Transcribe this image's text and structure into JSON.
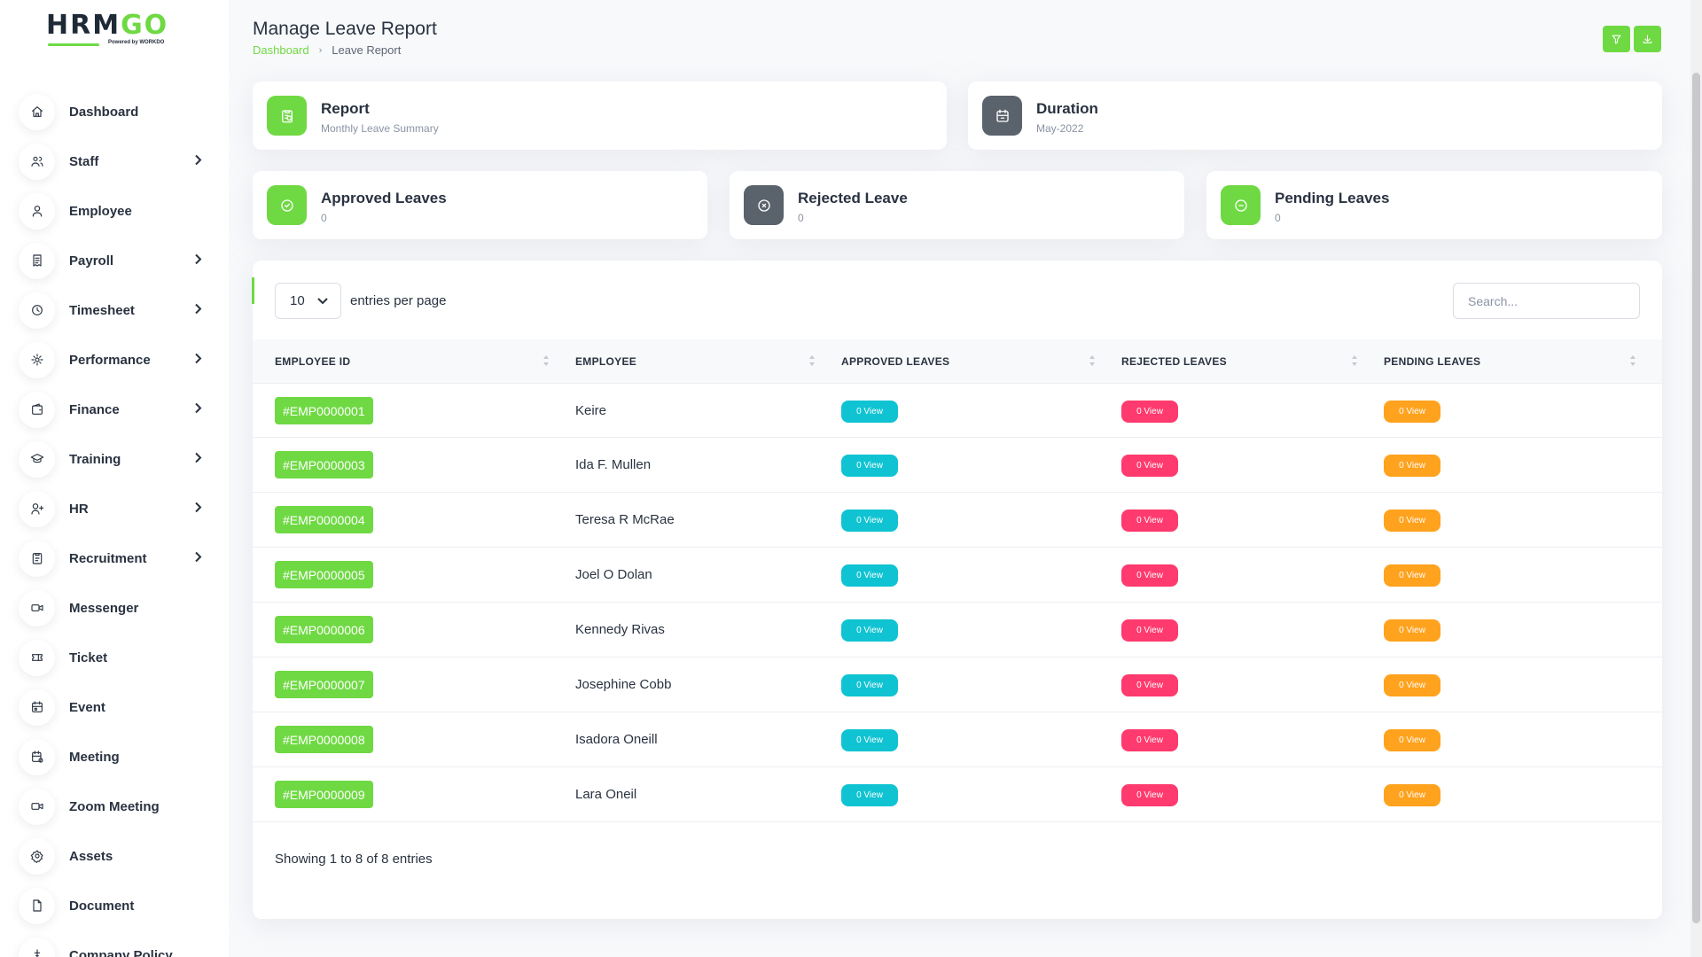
{
  "brand": {
    "logo_main": "HRM",
    "logo_go": "GO",
    "powered": "Powered by WORKDO"
  },
  "sidebar": {
    "items": [
      {
        "label": "Dashboard",
        "icon": "home-icon",
        "has_children": false
      },
      {
        "label": "Staff",
        "icon": "users-icon",
        "has_children": true
      },
      {
        "label": "Employee",
        "icon": "user-icon",
        "has_children": false
      },
      {
        "label": "Payroll",
        "icon": "receipt-icon",
        "has_children": true
      },
      {
        "label": "Timesheet",
        "icon": "clock-icon",
        "has_children": true
      },
      {
        "label": "Performance",
        "icon": "performance-icon",
        "has_children": true
      },
      {
        "label": "Finance",
        "icon": "wallet-icon",
        "has_children": true
      },
      {
        "label": "Training",
        "icon": "school-icon",
        "has_children": true
      },
      {
        "label": "HR",
        "icon": "user-plus-icon",
        "has_children": true
      },
      {
        "label": "Recruitment",
        "icon": "clipboard-icon",
        "has_children": true
      },
      {
        "label": "Messenger",
        "icon": "video-icon",
        "has_children": false
      },
      {
        "label": "Ticket",
        "icon": "ticket-icon",
        "has_children": false
      },
      {
        "label": "Event",
        "icon": "calendar-event-icon",
        "has_children": false
      },
      {
        "label": "Meeting",
        "icon": "calendar-time-icon",
        "has_children": false
      },
      {
        "label": "Zoom Meeting",
        "icon": "video-icon",
        "has_children": false
      },
      {
        "label": "Assets",
        "icon": "gear-icon",
        "has_children": false
      },
      {
        "label": "Document",
        "icon": "file-icon",
        "has_children": false
      },
      {
        "label": "Company Policy",
        "icon": "policy-icon",
        "has_children": false
      }
    ]
  },
  "header": {
    "title": "Manage Leave Report",
    "breadcrumb": {
      "home": "Dashboard",
      "current": "Leave Report"
    }
  },
  "summary": {
    "report": {
      "title": "Report",
      "value": "Monthly Leave Summary"
    },
    "duration": {
      "title": "Duration",
      "value": "May-2022"
    },
    "approved": {
      "title": "Approved Leaves",
      "value": "0"
    },
    "rejected": {
      "title": "Rejected Leave",
      "value": "0"
    },
    "pending": {
      "title": "Pending Leaves",
      "value": "0"
    }
  },
  "table": {
    "per_page": "10",
    "per_page_label": "entries per page",
    "search_placeholder": "Search...",
    "columns": [
      "EMPLOYEE ID",
      "EMPLOYEE",
      "APPROVED LEAVES",
      "REJECTED LEAVES",
      "PENDING LEAVES"
    ],
    "rows": [
      {
        "id": "#EMP0000001",
        "name": "Keire",
        "approved": "0 View",
        "rejected": "0 View",
        "pending": "0 View"
      },
      {
        "id": "#EMP0000003",
        "name": "Ida F. Mullen",
        "approved": "0 View",
        "rejected": "0 View",
        "pending": "0 View"
      },
      {
        "id": "#EMP0000004",
        "name": "Teresa R McRae",
        "approved": "0 View",
        "rejected": "0 View",
        "pending": "0 View"
      },
      {
        "id": "#EMP0000005",
        "name": "Joel O Dolan",
        "approved": "0 View",
        "rejected": "0 View",
        "pending": "0 View"
      },
      {
        "id": "#EMP0000006",
        "name": "Kennedy Rivas",
        "approved": "0 View",
        "rejected": "0 View",
        "pending": "0 View"
      },
      {
        "id": "#EMP0000007",
        "name": "Josephine Cobb",
        "approved": "0 View",
        "rejected": "0 View",
        "pending": "0 View"
      },
      {
        "id": "#EMP0000008",
        "name": "Isadora Oneill",
        "approved": "0 View",
        "rejected": "0 View",
        "pending": "0 View"
      },
      {
        "id": "#EMP0000009",
        "name": "Lara Oneil",
        "approved": "0 View",
        "rejected": "0 View",
        "pending": "0 View"
      }
    ],
    "footer": "Showing 1 to 8 of 8 entries"
  },
  "colors": {
    "accent": "#6fd943",
    "cyan": "#0fc3d2",
    "pink": "#ff3a6e",
    "orange": "#ffa21d",
    "gray": "#5a626c"
  }
}
